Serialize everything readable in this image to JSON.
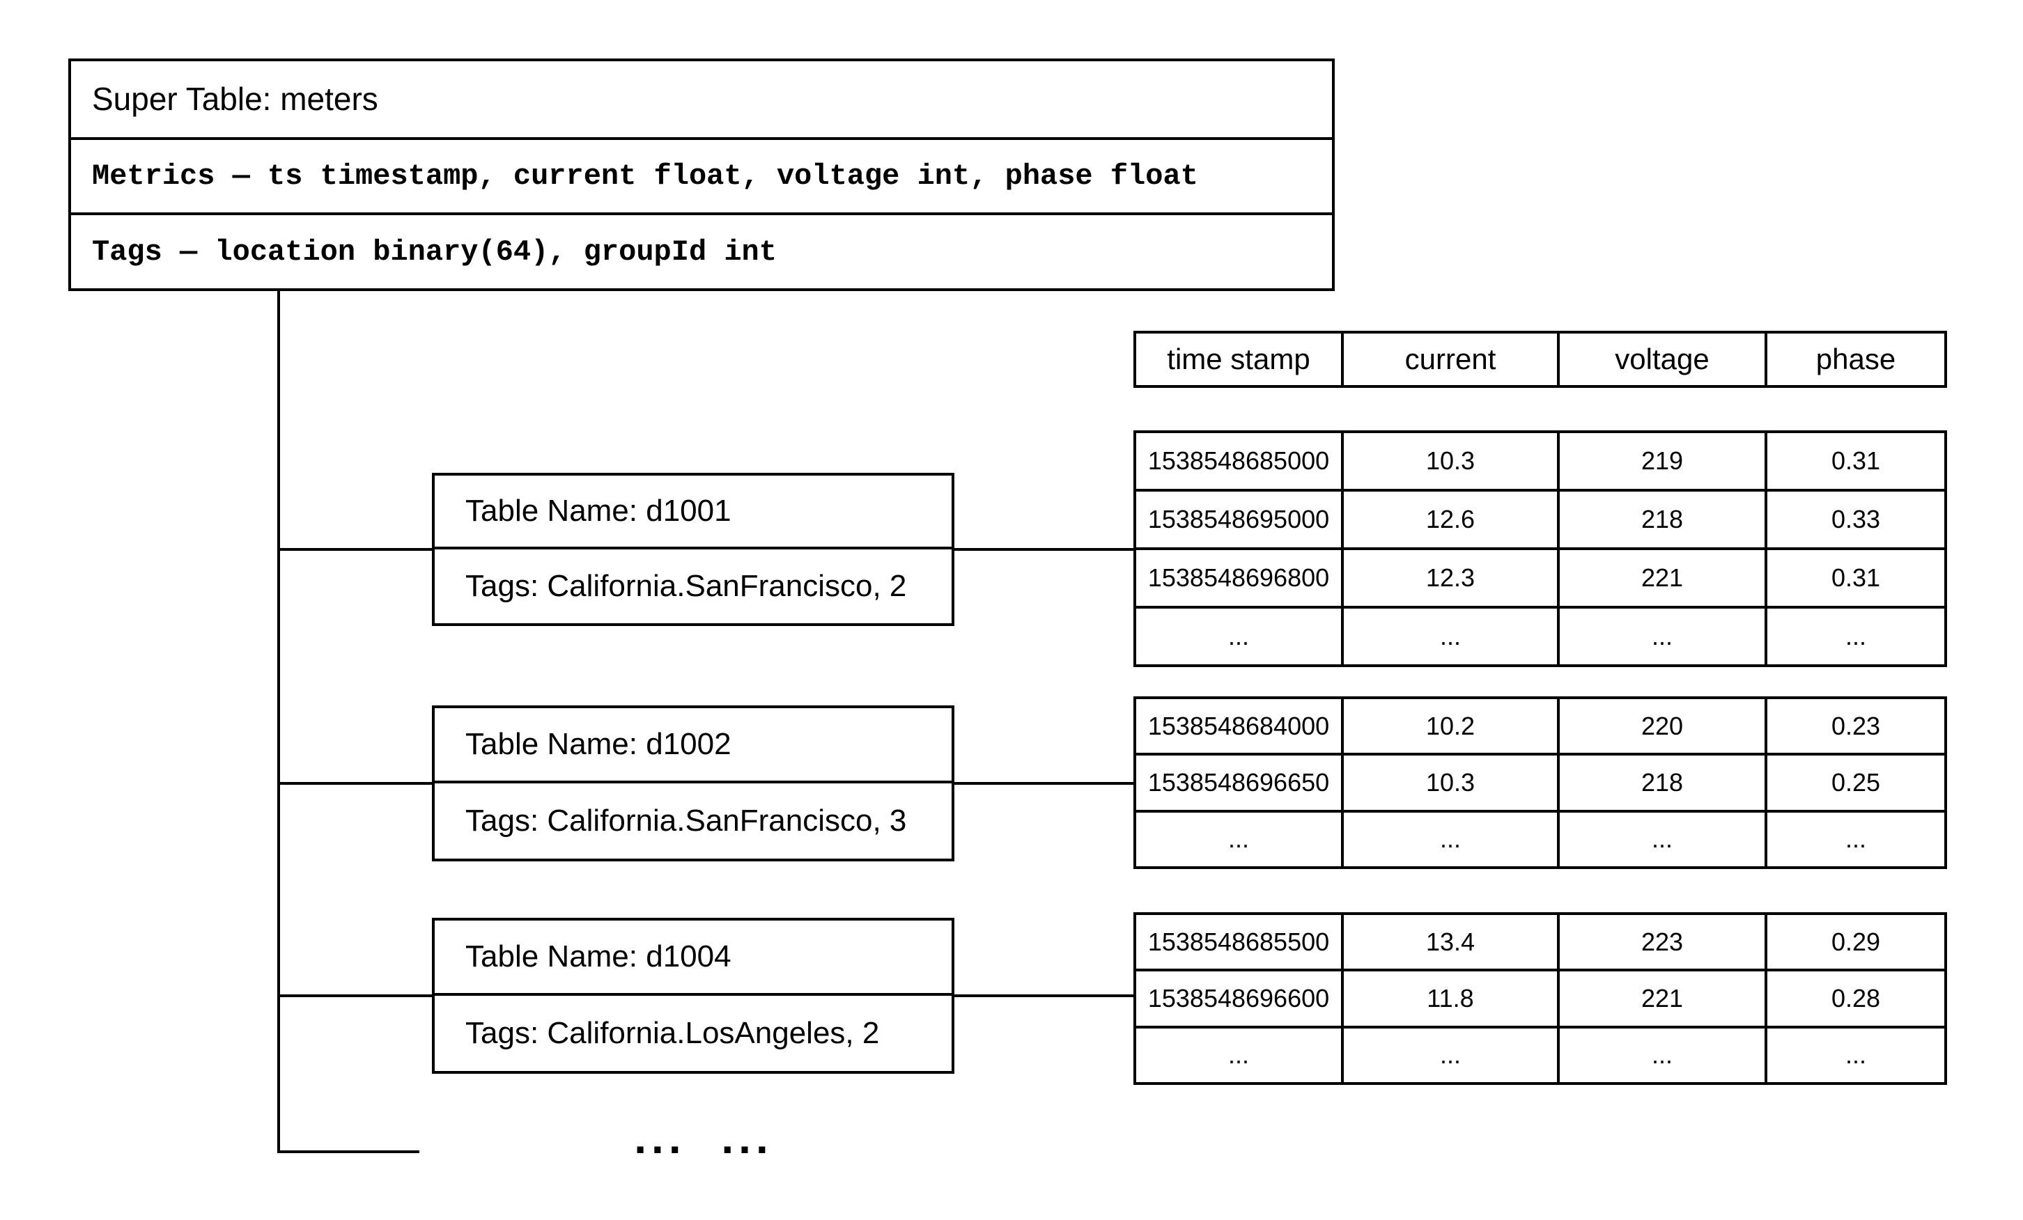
{
  "colors": {
    "ink": "#000000",
    "background": "#ffffff"
  },
  "super_table": {
    "title": "Super Table: meters",
    "metrics": "Metrics — ts timestamp, current float, voltage int, phase float",
    "tags": "Tags — location binary(64), groupId int"
  },
  "data_columns": [
    "time stamp",
    "current",
    "voltage",
    "phase"
  ],
  "subtables": [
    {
      "name": "Table Name: d1001",
      "tags": "Tags: California.SanFrancisco, 2",
      "rows": [
        [
          "1538548685000",
          "10.3",
          "219",
          "0.31"
        ],
        [
          "1538548695000",
          "12.6",
          "218",
          "0.33"
        ],
        [
          "1538548696800",
          "12.3",
          "221",
          "0.31"
        ],
        [
          "...",
          "...",
          "...",
          "..."
        ]
      ]
    },
    {
      "name": "Table Name: d1002",
      "tags": "Tags: California.SanFrancisco, 3",
      "rows": [
        [
          "1538548684000",
          "10.2",
          "220",
          "0.23"
        ],
        [
          "1538548696650",
          "10.3",
          "218",
          "0.25"
        ],
        [
          "...",
          "...",
          "...",
          "..."
        ]
      ]
    },
    {
      "name": "Table Name: d1004",
      "tags": "Tags: California.LosAngeles, 2",
      "rows": [
        [
          "1538548685500",
          "13.4",
          "223",
          "0.29"
        ],
        [
          "1538548696600",
          "11.8",
          "221",
          "0.28"
        ],
        [
          "...",
          "...",
          "...",
          "..."
        ]
      ]
    }
  ],
  "more_tables_ellipsis": "... ..."
}
